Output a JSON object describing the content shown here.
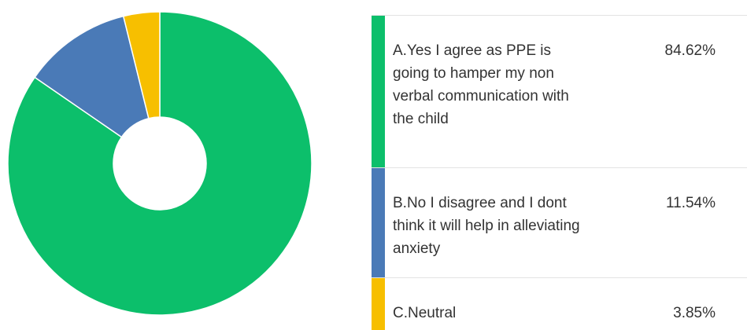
{
  "chart_data": {
    "type": "pie",
    "style": "donut",
    "categories": [
      "A.Yes I agree as PPE is going to hamper my non verbal communication with the child",
      "B.No I disagree and I dont think it will help in alleviating anxiety",
      "C.Neutral"
    ],
    "values": [
      84.62,
      11.54,
      3.85
    ],
    "value_labels": [
      "84.62%",
      "11.54%",
      "3.85%"
    ],
    "colors": [
      "#0cbf6b",
      "#4a7ab7",
      "#f7bf00"
    ],
    "title": "",
    "legend_position": "right"
  }
}
